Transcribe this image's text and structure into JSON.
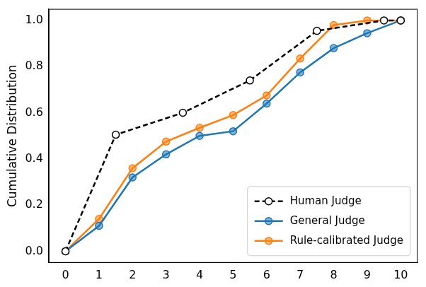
{
  "chart_data": {
    "type": "line",
    "y_label": "Cumulative Distribution",
    "xlim": [
      -0.5,
      10.5
    ],
    "xticks": [
      0,
      1,
      2,
      3,
      4,
      5,
      6,
      7,
      8,
      9,
      10
    ],
    "ylim": [
      -0.05,
      1.05
    ],
    "yticks": [
      {
        "value": 0,
        "label": "0.0"
      },
      0.2,
      0.4,
      0.6,
      0.8,
      {
        "value": 1,
        "label": "1.0"
      }
    ],
    "grid": false,
    "legend": "lower right",
    "series": [
      {
        "name": "Human Judge",
        "color": "#000000",
        "line_style": "dashed",
        "marker": "circle",
        "x": [
          0,
          1.5,
          3.5,
          5.5,
          7.5,
          9.5,
          10
        ],
        "values": [
          0,
          0.505,
          0.6,
          0.74,
          0.955,
          1.0,
          1.0
        ]
      },
      {
        "name": "General Judge",
        "color": "#1f77b4",
        "line_style": "solid",
        "marker": "circle",
        "x": [
          0,
          1,
          2,
          3,
          4,
          5,
          6,
          7,
          8,
          9,
          10
        ],
        "values": [
          0,
          0.11,
          0.32,
          0.42,
          0.5,
          0.52,
          0.64,
          0.775,
          0.88,
          0.945,
          1.0
        ]
      },
      {
        "name": "Rule-calibrated Judge",
        "color": "#ff7f0e",
        "line_style": "solid",
        "marker": "circle",
        "x": [
          0,
          1,
          2,
          3,
          4,
          5,
          6,
          7,
          8,
          9,
          10
        ],
        "values": [
          0,
          0.14,
          0.36,
          0.475,
          0.535,
          0.59,
          0.675,
          0.835,
          0.98,
          1.0,
          1.0
        ]
      }
    ]
  }
}
